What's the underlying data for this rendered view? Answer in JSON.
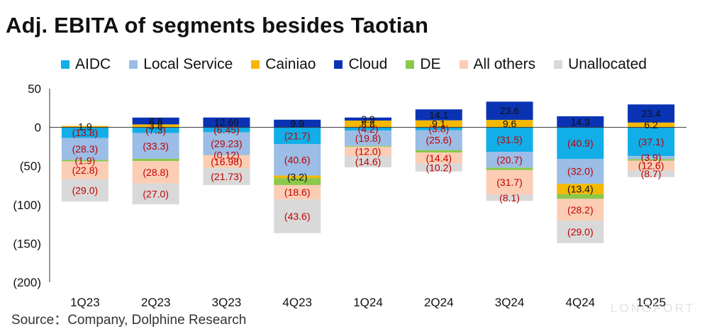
{
  "chart_data": {
    "type": "bar",
    "stacked": true,
    "title": "Adj. EBITA of segments besides Taotian",
    "source": "Source：Company, Dolphine Research",
    "categories": [
      "1Q23",
      "2Q23",
      "3Q23",
      "4Q23",
      "1Q24",
      "2Q24",
      "3Q24",
      "4Q24",
      "1Q25"
    ],
    "ylim": [
      -200,
      50
    ],
    "yticks": [
      50,
      0,
      -50,
      -100,
      -150,
      -200
    ],
    "ytick_labels": [
      "50",
      "0",
      "(50)",
      "(100)",
      "(150)",
      "(200)"
    ],
    "legend_position": "top",
    "grid": false,
    "series": [
      {
        "name": "AIDC",
        "color": "#11aee8",
        "text_color": "#c00000",
        "values": [
          -13.8,
          -7.3,
          -6.45,
          -21.7,
          -4.2,
          -3.8,
          -31.5,
          -40.9,
          -37.1
        ],
        "labels": [
          "(13.8)",
          "(7.3)",
          "(6.45)",
          "(21.7)",
          "(4.2)",
          "(3.8)",
          "(31.5)",
          "(40.9)",
          "(37.1)"
        ]
      },
      {
        "name": "Local Service",
        "color": "#9bbde6",
        "text_color": "#c00000",
        "values": [
          -28.3,
          -33.3,
          -29.23,
          -40.6,
          -19.8,
          -25.6,
          -20.7,
          -32.0,
          -3.9
        ],
        "labels": [
          "(28.3)",
          "(33.3)",
          "(29.23)",
          "(40.6)",
          "(19.8)",
          "(25.6)",
          "(20.7)",
          "(32.0)",
          "(3.9)"
        ]
      },
      {
        "name": "Cainiao",
        "color": "#f5b800",
        "text_color": "#111111",
        "values": [
          1.9,
          3.8,
          0.0,
          -3.2,
          8.8,
          9.1,
          9.6,
          -13.4,
          6.2
        ],
        "labels": [
          "1.9",
          "3.8",
          "",
          "(3.2)",
          "8.8",
          "9.1",
          "9.6",
          "(13.4)",
          "6.2"
        ]
      },
      {
        "name": "Cloud",
        "color": "#0a33b4",
        "text_color": "#111111",
        "values": [
          0.0,
          8.8,
          12.69,
          9.9,
          3.9,
          14.1,
          23.6,
          14.3,
          23.4
        ],
        "labels": [
          "",
          "8.8",
          "12.69",
          "9.9",
          "3.9",
          "14.1",
          "23.6",
          "14.3",
          "23.4"
        ]
      },
      {
        "name": "DE",
        "color": "#8bc84b",
        "text_color": "#c00000",
        "values": [
          -1.9,
          -3.0,
          -0.12,
          -9.0,
          -1.0,
          -3.0,
          -3.0,
          -6.0,
          -2.0
        ],
        "labels": [
          "(1.9)",
          "",
          "(0.12)",
          "",
          "",
          "",
          "",
          "",
          ""
        ]
      },
      {
        "name": "All others",
        "color": "#fbcdb4",
        "text_color": "#c00000",
        "values": [
          -22.8,
          -28.8,
          -16.98,
          -18.6,
          -12.0,
          -14.4,
          -31.7,
          -28.2,
          -12.6
        ],
        "labels": [
          "(22.8)",
          "(28.8)",
          "(16.98)",
          "(18.6)",
          "(12.0)",
          "(14.4)",
          "(31.7)",
          "(28.2)",
          "(12.6)"
        ]
      },
      {
        "name": "Unallocated",
        "color": "#d9d9d9",
        "text_color": "#c00000",
        "values": [
          -29.0,
          -27.0,
          -21.73,
          -43.6,
          -14.6,
          -10.2,
          -8.1,
          -29.0,
          -8.7
        ],
        "labels": [
          "(29.0)",
          "(27.0)",
          "(21.73)",
          "(43.6)",
          "(14.6)",
          "(10.2)",
          "(8.1)",
          "(29.0)",
          "(8.7)"
        ]
      }
    ]
  },
  "watermark": "LONGPORT"
}
